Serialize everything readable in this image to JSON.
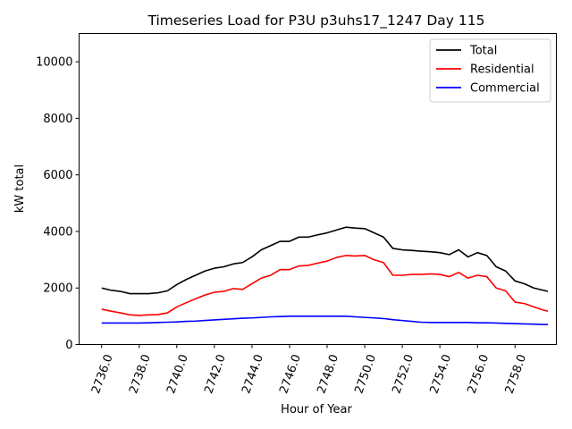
{
  "chart_data": {
    "type": "line",
    "title": "Timeseries Load for P3U p3uhs17_1247  Day 115",
    "xlabel": "Hour of Year",
    "ylabel": "kW total",
    "xlim": [
      2734.8,
      2760.2
    ],
    "ylim": [
      0,
      11000
    ],
    "xticks": [
      2736,
      2738,
      2740,
      2742,
      2744,
      2746,
      2748,
      2750,
      2752,
      2754,
      2756,
      2758
    ],
    "xtick_labels": [
      "2736.0",
      "2738.0",
      "2740.0",
      "2742.0",
      "2744.0",
      "2746.0",
      "2748.0",
      "2750.0",
      "2752.0",
      "2754.0",
      "2756.0",
      "2758.0"
    ],
    "yticks": [
      0,
      2000,
      4000,
      6000,
      8000,
      10000
    ],
    "ytick_labels": [
      "0",
      "2000",
      "4000",
      "6000",
      "8000",
      "10000"
    ],
    "grid": false,
    "legend_position": "top-right",
    "x": [
      2736.0,
      2736.5,
      2737.0,
      2737.5,
      2738.0,
      2738.5,
      2739.0,
      2739.5,
      2740.0,
      2740.5,
      2741.0,
      2741.5,
      2742.0,
      2742.5,
      2743.0,
      2743.5,
      2744.0,
      2744.5,
      2745.0,
      2745.5,
      2746.0,
      2746.5,
      2747.0,
      2747.5,
      2748.0,
      2748.5,
      2749.0,
      2749.5,
      2750.0,
      2750.5,
      2751.0,
      2751.5,
      2752.0,
      2752.5,
      2753.0,
      2753.5,
      2754.0,
      2754.5,
      2755.0,
      2755.5,
      2756.0,
      2756.5,
      2757.0,
      2757.5,
      2758.0,
      2758.5,
      2759.0,
      2759.5,
      2759.75
    ],
    "series": [
      {
        "name": "Total",
        "color": "#000000",
        "values": [
          2000,
          1920,
          1880,
          1800,
          1800,
          1800,
          1830,
          1900,
          2120,
          2300,
          2450,
          2600,
          2700,
          2750,
          2850,
          2900,
          3100,
          3350,
          3500,
          3650,
          3650,
          3800,
          3800,
          3880,
          3950,
          4050,
          4150,
          4120,
          4100,
          3950,
          3800,
          3400,
          3350,
          3330,
          3300,
          3280,
          3250,
          3180,
          3350,
          3100,
          3250,
          3150,
          2750,
          2600,
          2250,
          2150,
          2000,
          1920,
          1880
        ]
      },
      {
        "name": "Residential",
        "color": "#ff0000",
        "values": [
          1250,
          1180,
          1120,
          1050,
          1030,
          1050,
          1060,
          1120,
          1330,
          1480,
          1620,
          1750,
          1850,
          1880,
          1980,
          1950,
          2150,
          2350,
          2450,
          2650,
          2650,
          2780,
          2800,
          2880,
          2950,
          3080,
          3150,
          3130,
          3150,
          3000,
          2900,
          2450,
          2450,
          2480,
          2480,
          2500,
          2480,
          2400,
          2550,
          2350,
          2450,
          2400,
          2000,
          1900,
          1500,
          1450,
          1330,
          1220,
          1180
        ]
      },
      {
        "name": "Commercial",
        "color": "#0000ff",
        "values": [
          760,
          760,
          760,
          760,
          760,
          770,
          780,
          790,
          800,
          820,
          830,
          850,
          870,
          890,
          910,
          930,
          940,
          960,
          980,
          990,
          1000,
          1000,
          1000,
          1000,
          1000,
          1000,
          1000,
          980,
          960,
          940,
          920,
          880,
          850,
          820,
          790,
          780,
          780,
          780,
          780,
          780,
          770,
          770,
          760,
          750,
          740,
          730,
          720,
          710,
          710
        ]
      }
    ]
  }
}
